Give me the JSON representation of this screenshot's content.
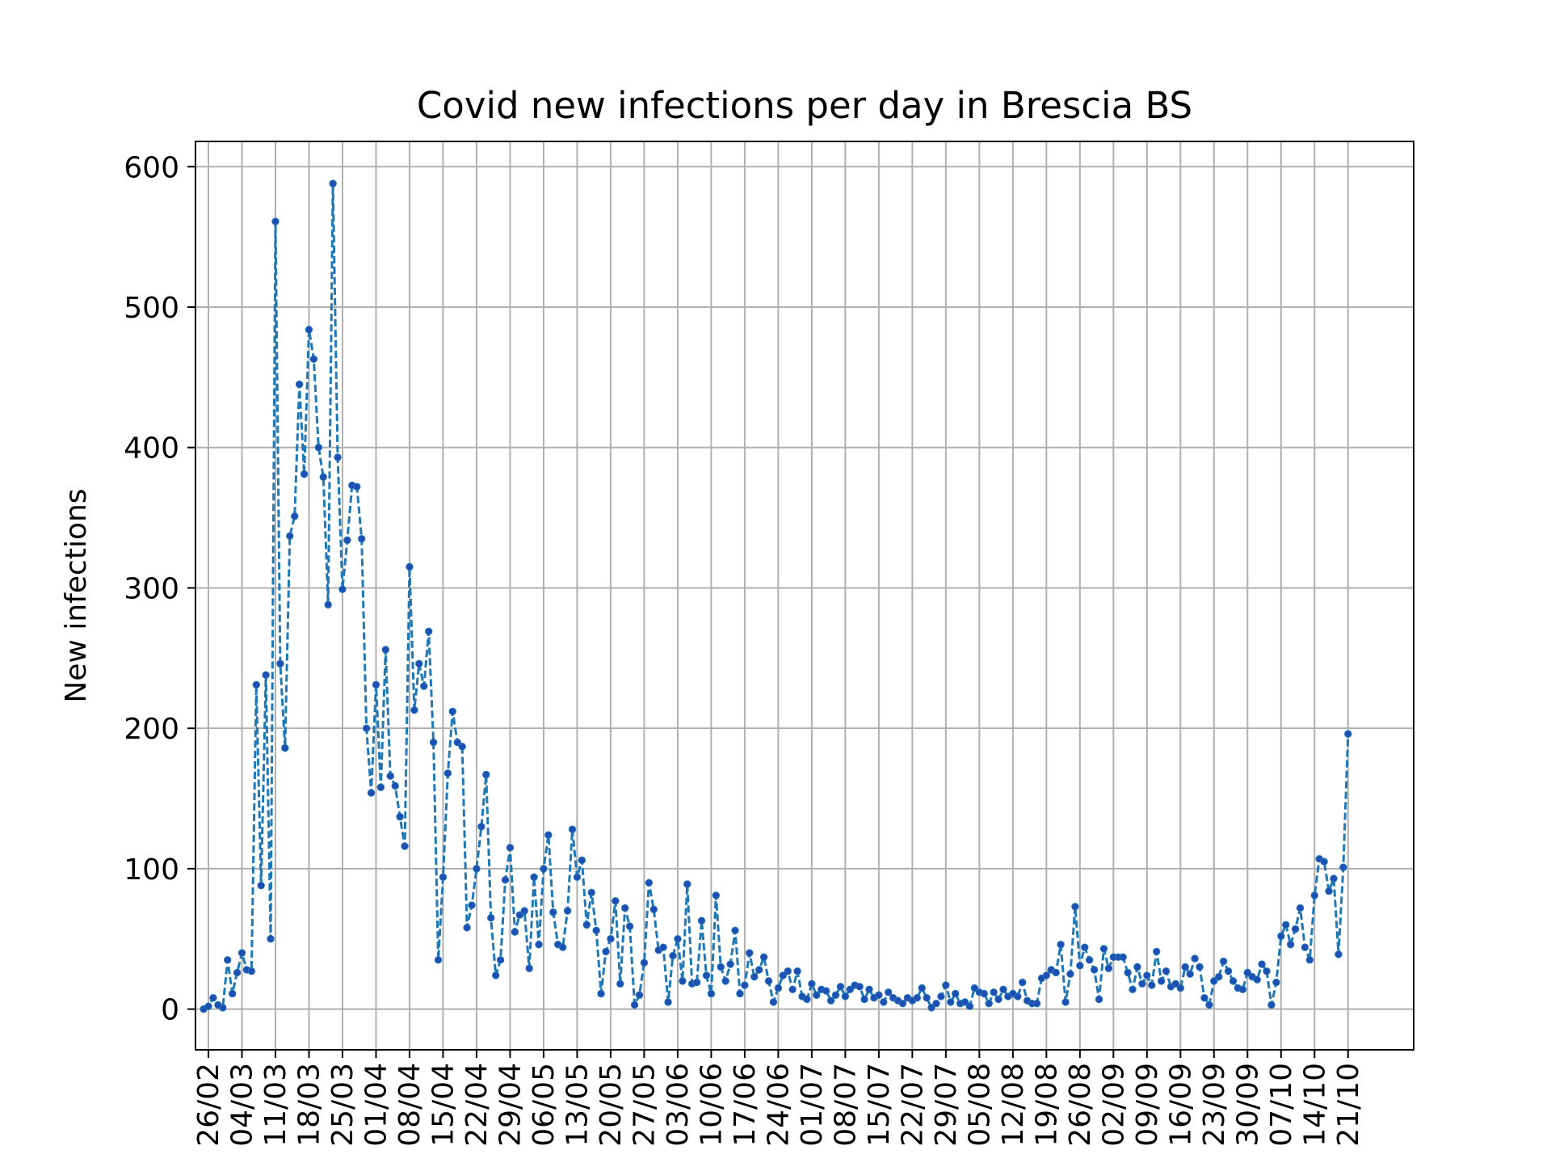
{
  "chart_data": {
    "type": "line",
    "title": "Covid new infections per day in Brescia BS",
    "xlabel": "",
    "ylabel": "New infections",
    "x_ticks": [
      "26/02",
      "04/03",
      "11/03",
      "18/03",
      "25/03",
      "01/04",
      "08/04",
      "15/04",
      "22/04",
      "29/04",
      "06/05",
      "13/05",
      "20/05",
      "27/05",
      "03/06",
      "10/06",
      "17/06",
      "24/06",
      "01/07",
      "08/07",
      "15/07",
      "22/07",
      "29/07",
      "05/08",
      "12/08",
      "19/08",
      "26/08",
      "02/09",
      "09/09",
      "16/09",
      "23/09",
      "30/09",
      "07/10",
      "14/10",
      "21/10"
    ],
    "y_ticks": [
      0,
      100,
      200,
      300,
      400,
      500,
      600
    ],
    "xlim_days": [
      -1.7,
      252.7
    ],
    "ylim": [
      -29,
      618
    ],
    "grid": true,
    "line_style": "dashed",
    "marker": "dot",
    "colors": {
      "line": "#1f77b4",
      "marker": "#1f4fb4",
      "grid": "#b0b0b0"
    },
    "series": [
      {
        "start_date": "25/02",
        "values": [
          0,
          2,
          8,
          3,
          1,
          35,
          11,
          26,
          40,
          28,
          27,
          231,
          88,
          238,
          50,
          561,
          246,
          186,
          337,
          351,
          445,
          381,
          484,
          463,
          400,
          379,
          288,
          588,
          393,
          299,
          334,
          373,
          372,
          335,
          200,
          154,
          231,
          158,
          256,
          166,
          159,
          137,
          116,
          315,
          213,
          246,
          230,
          269,
          190,
          35,
          94,
          168,
          212,
          190,
          187,
          58,
          74,
          100,
          130,
          167,
          65,
          24,
          35,
          92,
          115,
          55,
          67,
          70,
          29,
          94,
          46,
          100,
          124,
          69,
          46,
          44,
          70,
          128,
          94,
          106,
          60,
          83,
          56,
          11,
          41,
          50,
          77,
          18,
          72,
          59,
          3,
          10,
          33,
          90,
          71,
          42,
          44,
          5,
          38,
          50,
          20,
          89,
          18,
          19,
          63,
          24,
          11,
          81,
          30,
          20,
          32,
          56,
          11,
          17,
          40,
          23,
          28,
          37,
          20,
          5,
          15,
          24,
          27,
          14,
          27,
          9,
          7,
          18,
          10,
          14,
          13,
          6,
          10,
          16,
          9,
          14,
          17,
          16,
          7,
          14,
          8,
          10,
          5,
          12,
          8,
          6,
          4,
          8,
          6,
          8,
          15,
          8,
          1,
          4,
          9,
          17,
          5,
          11,
          4,
          5,
          2,
          15,
          12,
          11,
          4,
          12,
          7,
          14,
          9,
          11,
          9,
          19,
          6,
          4,
          4,
          22,
          24,
          28,
          26,
          46,
          5,
          25,
          73,
          31,
          44,
          35,
          28,
          7,
          43,
          29,
          37,
          37,
          37,
          26,
          14,
          30,
          18,
          24,
          17,
          41,
          20,
          27,
          16,
          18,
          15,
          30,
          25,
          36,
          30,
          8,
          3,
          20,
          23,
          34,
          27,
          20,
          15,
          14,
          26,
          23,
          21,
          32,
          27,
          3,
          19,
          52,
          60,
          46,
          57,
          72,
          44,
          35,
          81,
          107,
          105,
          84,
          93,
          39,
          101,
          196
        ]
      }
    ]
  }
}
